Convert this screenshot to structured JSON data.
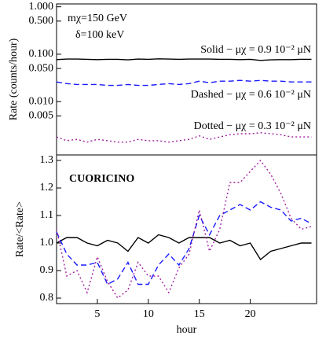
{
  "chart_data": [
    {
      "type": "line",
      "ylabel": "Rate (counts/hour)",
      "log_y": true,
      "xlim": [
        1,
        26.5
      ],
      "ylim": [
        0.00075,
        1.15
      ],
      "yticks": [
        {
          "value": 1,
          "label": "1.000"
        },
        {
          "value": 0.5,
          "label": "0.500"
        },
        {
          "value": 0.1,
          "label": "0.100"
        },
        {
          "value": 0.05,
          "label": "0.050"
        },
        {
          "value": 0.01,
          "label": "0.010"
        },
        {
          "value": 0.005,
          "label": "0.005"
        }
      ],
      "x": [
        1,
        2,
        3,
        4,
        5,
        6,
        7,
        8,
        9,
        10,
        11,
        12,
        13,
        14,
        15,
        16,
        17,
        18,
        19,
        20,
        21,
        22,
        23,
        24,
        25,
        26
      ],
      "annotations": [
        {
          "text": "mχ=150 GeV",
          "color": "#000000"
        },
        {
          "text": "δ=100 keV",
          "color": "#000000"
        },
        {
          "text": "Solid − μχ = 0.9 10⁻² μN",
          "color": "#000000"
        },
        {
          "text": "Dashed − μχ = 0.6 10⁻² μN",
          "color": "#1a1aff"
        },
        {
          "text": "Dotted − μχ = 0.3 10⁻² μN",
          "color": "#a020a0"
        }
      ],
      "series": [
        {
          "color": "#000000",
          "dash": "solid",
          "values": [
            0.077,
            0.079,
            0.079,
            0.078,
            0.077,
            0.078,
            0.078,
            0.076,
            0.079,
            0.078,
            0.08,
            0.079,
            0.078,
            0.079,
            0.079,
            0.079,
            0.078,
            0.078,
            0.077,
            0.078,
            0.074,
            0.076,
            0.077,
            0.077,
            0.078,
            0.078
          ]
        },
        {
          "color": "#1a1aff",
          "dash": "dashed",
          "values": [
            0.026,
            0.024,
            0.023,
            0.023,
            0.023,
            0.022,
            0.022,
            0.023,
            0.022,
            0.022,
            0.023,
            0.024,
            0.023,
            0.024,
            0.027,
            0.025,
            0.027,
            0.027,
            0.028,
            0.027,
            0.028,
            0.027,
            0.027,
            0.026,
            0.026,
            0.026
          ]
        },
        {
          "color": "#a020a0",
          "dash": "dotted",
          "values": [
            0.0018,
            0.0015,
            0.0016,
            0.0014,
            0.0016,
            0.0015,
            0.0014,
            0.0014,
            0.0016,
            0.0015,
            0.0015,
            0.0014,
            0.0015,
            0.0016,
            0.0019,
            0.0016,
            0.0018,
            0.002,
            0.0021,
            0.0021,
            0.0022,
            0.0021,
            0.002,
            0.0018,
            0.0018,
            0.0018
          ]
        }
      ]
    },
    {
      "type": "line",
      "ylabel": "Rate/<Rate>",
      "xlabel": "hour",
      "xlim": [
        1,
        26.5
      ],
      "ylim": [
        0.78,
        1.32
      ],
      "xticks": [
        5,
        10,
        15,
        20
      ],
      "yticks": [
        0.8,
        0.9,
        {
          "value": 1,
          "label": "1.0"
        },
        1.1,
        1.2,
        1.3
      ],
      "x": [
        1,
        2,
        3,
        4,
        5,
        6,
        7,
        8,
        9,
        10,
        11,
        12,
        13,
        14,
        15,
        16,
        17,
        18,
        19,
        20,
        21,
        22,
        23,
        24,
        25,
        26
      ],
      "annotations": [
        {
          "text": "CUORICINO",
          "color": "#e8321e"
        }
      ],
      "series": [
        {
          "color": "#000000",
          "dash": "solid",
          "values": [
            1.0,
            1.02,
            1.02,
            1.0,
            0.99,
            1.01,
            1.0,
            0.97,
            1.02,
            1.0,
            1.03,
            1.02,
            1.0,
            1.02,
            1.02,
            1.02,
            1.0,
            1.01,
            0.99,
            1.0,
            0.94,
            0.97,
            0.98,
            0.99,
            1.0,
            1.0
          ]
        },
        {
          "color": "#1a1aff",
          "dash": "dashed",
          "values": [
            1.04,
            0.96,
            0.92,
            0.92,
            0.93,
            0.85,
            0.87,
            0.93,
            0.85,
            0.85,
            0.92,
            0.96,
            0.92,
            0.98,
            1.1,
            1.03,
            1.1,
            1.12,
            1.14,
            1.12,
            1.15,
            1.13,
            1.12,
            1.08,
            1.09,
            1.07
          ]
        },
        {
          "color": "#a020a0",
          "dash": "dotted",
          "values": [
            1.05,
            0.88,
            0.9,
            0.82,
            0.95,
            0.86,
            0.8,
            0.83,
            0.93,
            0.88,
            0.88,
            0.82,
            0.91,
            0.96,
            1.12,
            0.97,
            1.05,
            1.22,
            1.22,
            1.26,
            1.3,
            1.25,
            1.18,
            1.09,
            1.05,
            1.06
          ]
        }
      ]
    }
  ]
}
